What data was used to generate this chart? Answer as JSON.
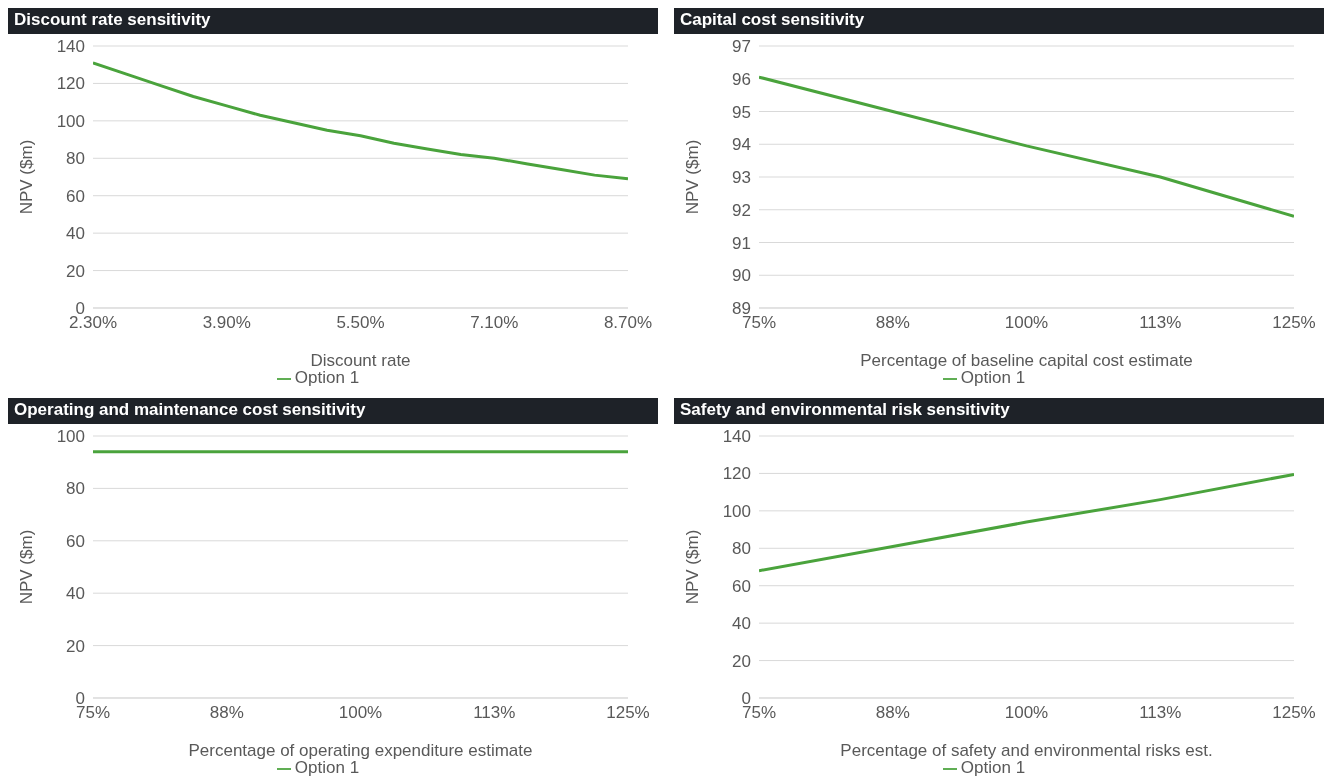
{
  "chart_data": [
    {
      "type": "line",
      "title": "Discount rate sensitivity",
      "xlabel": "Discount rate",
      "ylabel": "NPV ($m)",
      "x": [
        2.3,
        2.7,
        3.1,
        3.5,
        3.9,
        4.3,
        4.7,
        5.1,
        5.5,
        5.9,
        6.3,
        6.7,
        7.1,
        7.5,
        7.9,
        8.3,
        8.7
      ],
      "series": [
        {
          "name": "Option 1",
          "color": "#4aa33c",
          "values": [
            131,
            125,
            119,
            113,
            108,
            103,
            99,
            95,
            92,
            88,
            85,
            82,
            80,
            77,
            74,
            71,
            69
          ]
        }
      ],
      "xlim": [
        2.3,
        8.7
      ],
      "xticks": [
        {
          "value": 2.3,
          "label": "2.30%"
        },
        {
          "value": 3.9,
          "label": "3.90%"
        },
        {
          "value": 5.5,
          "label": "5.50%"
        },
        {
          "value": 7.1,
          "label": "7.10%"
        },
        {
          "value": 8.7,
          "label": "8.70%"
        }
      ],
      "ylim": [
        0,
        140
      ],
      "yticks": [
        0,
        20,
        40,
        60,
        80,
        100,
        120,
        140
      ],
      "grid": "y",
      "legend": "bottom"
    },
    {
      "type": "line",
      "title": "Capital cost sensitivity",
      "xlabel": "Percentage of baseline capital cost estimate",
      "ylabel": "NPV ($m)",
      "x": [
        75,
        87.5,
        100,
        112.5,
        125
      ],
      "series": [
        {
          "name": "Option 1",
          "color": "#4aa33c",
          "values": [
            96.05,
            95.0,
            93.95,
            93.0,
            91.8
          ]
        }
      ],
      "xlim": [
        75,
        125
      ],
      "xticks": [
        {
          "value": 75,
          "label": "75%"
        },
        {
          "value": 87.5,
          "label": "88%"
        },
        {
          "value": 100,
          "label": "100%"
        },
        {
          "value": 112.5,
          "label": "113%"
        },
        {
          "value": 125,
          "label": "125%"
        }
      ],
      "ylim": [
        89,
        97
      ],
      "yticks": [
        89,
        90,
        91,
        92,
        93,
        94,
        95,
        96,
        97
      ],
      "grid": "y",
      "legend": "bottom"
    },
    {
      "type": "line",
      "title": "Operating and maintenance cost sensitivity",
      "xlabel": "Percentage of operating expenditure estimate",
      "ylabel": "NPV ($m)",
      "x": [
        75,
        87.5,
        100,
        112.5,
        125
      ],
      "series": [
        {
          "name": "Option 1",
          "color": "#4aa33c",
          "values": [
            94,
            94,
            94,
            94,
            94
          ]
        }
      ],
      "xlim": [
        75,
        125
      ],
      "xticks": [
        {
          "value": 75,
          "label": "75%"
        },
        {
          "value": 87.5,
          "label": "88%"
        },
        {
          "value": 100,
          "label": "100%"
        },
        {
          "value": 112.5,
          "label": "113%"
        },
        {
          "value": 125,
          "label": "125%"
        }
      ],
      "ylim": [
        0,
        100
      ],
      "yticks": [
        0,
        20,
        40,
        60,
        80,
        100
      ],
      "grid": "y",
      "legend": "bottom"
    },
    {
      "type": "line",
      "title": "Safety and environmental risk sensitivity",
      "xlabel": "Percentage of safety and environmental risks est.",
      "ylabel": "NPV ($m)",
      "x": [
        75,
        87.5,
        100,
        112.5,
        125
      ],
      "series": [
        {
          "name": "Option 1",
          "color": "#4aa33c",
          "values": [
            68,
            81,
            94,
            106,
            119.5
          ]
        }
      ],
      "xlim": [
        75,
        125
      ],
      "xticks": [
        {
          "value": 75,
          "label": "75%"
        },
        {
          "value": 87.5,
          "label": "88%"
        },
        {
          "value": 100,
          "label": "100%"
        },
        {
          "value": 112.5,
          "label": "113%"
        },
        {
          "value": 125,
          "label": "125%"
        }
      ],
      "ylim": [
        0,
        140
      ],
      "yticks": [
        0,
        20,
        40,
        60,
        80,
        100,
        120,
        140
      ],
      "grid": "y",
      "legend": "bottom"
    }
  ]
}
